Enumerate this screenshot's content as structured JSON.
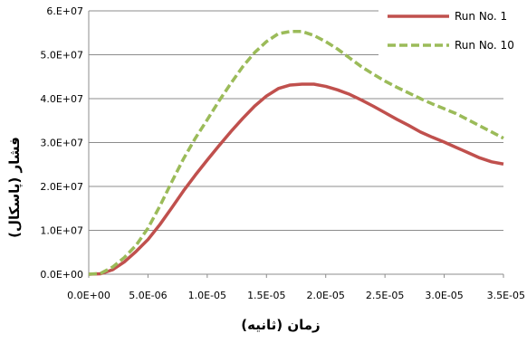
{
  "chart_data": {
    "type": "line",
    "title": "",
    "xlabel": "زمان (ثانیه)",
    "ylabel": "فشار (پاسکال)",
    "xlim": [
      0,
      3.5e-05
    ],
    "ylim": [
      0,
      60000000.0
    ],
    "x_ticks": [
      "0.0E+00",
      "5.0E-06",
      "1.0E-05",
      "1.5E-05",
      "2.0E-05",
      "2.5E-05",
      "3.0E-05",
      "3.5E-05"
    ],
    "y_ticks": [
      "0.0E+00",
      "1.0E+07",
      "2.0E+07",
      "3.0E+07",
      "4.0E+07",
      "5.0E+07",
      "6.E+07"
    ],
    "grid": "horizontal",
    "legend_position": "top-right",
    "series": [
      {
        "name": "Run No. 1",
        "color": "#c0504d",
        "style": "solid",
        "points": [
          [
            0,
            0
          ],
          [
            1e-06,
            100000.0
          ],
          [
            2e-06,
            1000000.0
          ],
          [
            3e-06,
            2800000.0
          ],
          [
            4e-06,
            5200000.0
          ],
          [
            5e-06,
            7900000.0
          ],
          [
            6e-06,
            11300000.0
          ],
          [
            7e-06,
            15100000.0
          ],
          [
            8e-06,
            19000000.0
          ],
          [
            9e-06,
            22600000.0
          ],
          [
            1e-05,
            26000000.0
          ],
          [
            1.1e-05,
            29300000.0
          ],
          [
            1.2e-05,
            32500000.0
          ],
          [
            1.3e-05,
            35500000.0
          ],
          [
            1.4e-05,
            38300000.0
          ],
          [
            1.5e-05,
            40600000.0
          ],
          [
            1.6e-05,
            42300000.0
          ],
          [
            1.7e-05,
            43100000.0
          ],
          [
            1.8e-05,
            43300000.0
          ],
          [
            1.9e-05,
            43300000.0
          ],
          [
            2e-05,
            42800000.0
          ],
          [
            2.1e-05,
            42000000.0
          ],
          [
            2.2e-05,
            41000000.0
          ],
          [
            2.3e-05,
            39700000.0
          ],
          [
            2.4e-05,
            38300000.0
          ],
          [
            2.5e-05,
            36800000.0
          ],
          [
            2.6e-05,
            35300000.0
          ],
          [
            2.7e-05,
            33900000.0
          ],
          [
            2.8e-05,
            32400000.0
          ],
          [
            2.9e-05,
            31200000.0
          ],
          [
            3e-05,
            30100000.0
          ],
          [
            3.1e-05,
            28900000.0
          ],
          [
            3.2e-05,
            27700000.0
          ],
          [
            3.3e-05,
            26500000.0
          ],
          [
            3.4e-05,
            25600000.0
          ],
          [
            3.5e-05,
            25100000.0
          ]
        ]
      },
      {
        "name": "Run No. 10",
        "color": "#9bbb59",
        "style": "dashed",
        "points": [
          [
            0,
            0
          ],
          [
            1e-06,
            200000.0
          ],
          [
            2e-06,
            1600000.0
          ],
          [
            3e-06,
            3800000.0
          ],
          [
            4e-06,
            6600000.0
          ],
          [
            5e-06,
            10500000.0
          ],
          [
            6e-06,
            15500000.0
          ],
          [
            7e-06,
            21000000.0
          ],
          [
            8e-06,
            26300000.0
          ],
          [
            9e-06,
            31000000.0
          ],
          [
            1e-05,
            35200000.0
          ],
          [
            1.1e-05,
            39500000.0
          ],
          [
            1.2e-05,
            43500000.0
          ],
          [
            1.3e-05,
            47300000.0
          ],
          [
            1.4e-05,
            50500000.0
          ],
          [
            1.5e-05,
            53000000.0
          ],
          [
            1.6e-05,
            54800000.0
          ],
          [
            1.7e-05,
            55300000.0
          ],
          [
            1.8e-05,
            55300000.0
          ],
          [
            1.9e-05,
            54400000.0
          ],
          [
            2e-05,
            53000000.0
          ],
          [
            2.1e-05,
            51300000.0
          ],
          [
            2.2e-05,
            49300000.0
          ],
          [
            2.3e-05,
            47300000.0
          ],
          [
            2.4e-05,
            45600000.0
          ],
          [
            2.5e-05,
            44000000.0
          ],
          [
            2.6e-05,
            42600000.0
          ],
          [
            2.7e-05,
            41300000.0
          ],
          [
            2.8e-05,
            40000000.0
          ],
          [
            2.9e-05,
            38800000.0
          ],
          [
            3e-05,
            37700000.0
          ],
          [
            3.1e-05,
            36600000.0
          ],
          [
            3.2e-05,
            35200000.0
          ],
          [
            3.3e-05,
            33800000.0
          ],
          [
            3.4e-05,
            32400000.0
          ],
          [
            3.5e-05,
            31000000.0
          ]
        ]
      }
    ]
  }
}
